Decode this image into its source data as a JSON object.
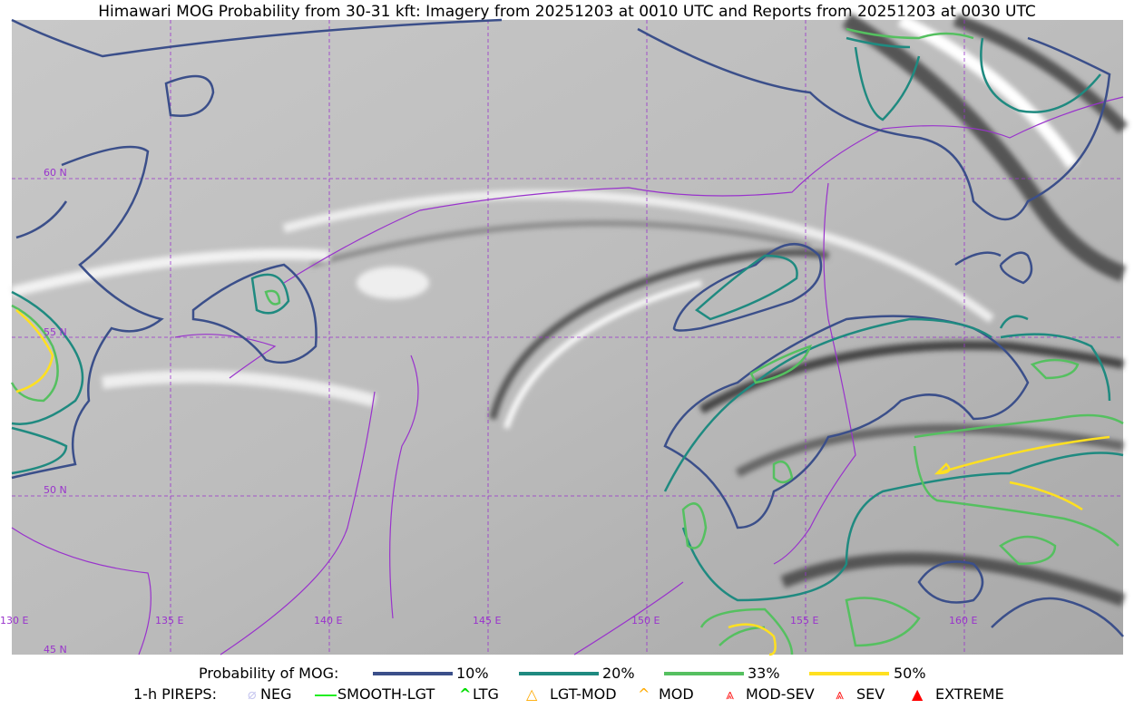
{
  "title": "Himawari MOG Probability from 30-31 kft: Imagery from 20251203 at 0010 UTC and Reports from 20251203 at 0030 UTC",
  "map": {
    "lon_labels": [
      "130 E",
      "135 E",
      "140 E",
      "145 E",
      "150 E",
      "155 E",
      "160 E"
    ],
    "lat_labels": [
      "60 N",
      "55 N",
      "50 N",
      "45 N"
    ],
    "colors": {
      "coast": "#9933cc",
      "grid": "#9933cc",
      "p10": "#3b4f8a",
      "p20": "#1f8a80",
      "p33": "#55c060",
      "p50": "#ffe020"
    }
  },
  "legend": {
    "prob_label": "Probability of MOG:",
    "prob_items": [
      {
        "label": "10%",
        "color": "#3b4f8a"
      },
      {
        "label": "20%",
        "color": "#1f8a80"
      },
      {
        "label": "33%",
        "color": "#55c060"
      },
      {
        "label": "50%",
        "color": "#ffe020"
      }
    ],
    "pirep_label": "1-h PIREPS:",
    "pirep_items": [
      {
        "label": "NEG",
        "icon": "neg-icon",
        "color": "#c8c8f0"
      },
      {
        "label": "SMOOTH-LGT",
        "icon": "smooth-lgt-line-icon",
        "color": "#22ee22"
      },
      {
        "label": "LTG",
        "icon": "ltg-caret-icon",
        "color": "#00dd00"
      },
      {
        "label": "LGT-MOD",
        "icon": "lgt-mod-icon",
        "color": "#ffaa00"
      },
      {
        "label": "MOD",
        "icon": "mod-caret-icon",
        "color": "#ffaa00"
      },
      {
        "label": "MOD-SEV",
        "icon": "mod-sev-icon",
        "color": "#ff2222"
      },
      {
        "label": "SEV",
        "icon": "sev-icon",
        "color": "#ff2222"
      },
      {
        "label": "EXTREME",
        "icon": "extreme-icon",
        "color": "#ff0000"
      }
    ]
  }
}
